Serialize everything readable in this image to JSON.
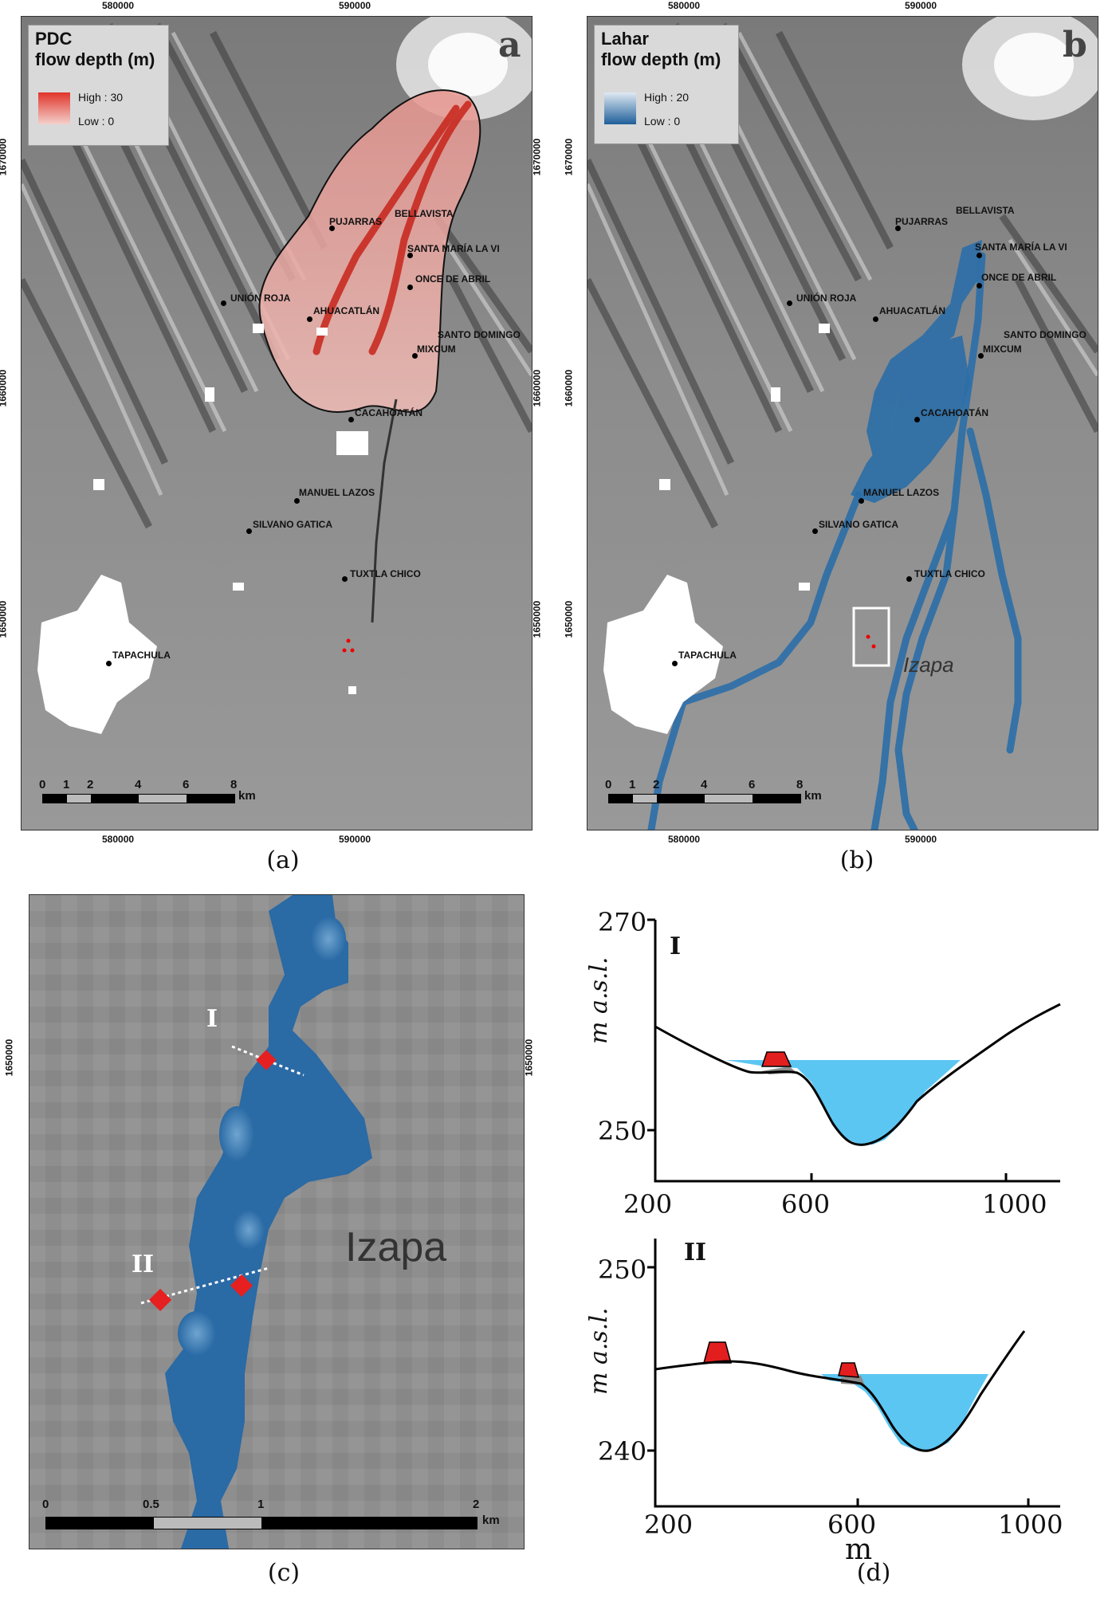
{
  "panel_a": {
    "caption": "(a)",
    "letter": "a",
    "legend_title_1": "PDC",
    "legend_title_2": "flow depth (m)",
    "legend_high": "High : 30",
    "legend_low": "Low : 0",
    "color": "#d9362e"
  },
  "panel_b": {
    "caption": "(b)",
    "letter": "b",
    "legend_title_1": "Lahar",
    "legend_title_2": "flow depth (m)",
    "legend_high": "High : 20",
    "legend_low": "Low : 0",
    "color": "#2b6ea8",
    "inset_label": "Izapa"
  },
  "panel_c": {
    "caption": "(c)",
    "tick_y": "1650000",
    "place": "Izapa",
    "profile_1": "I",
    "profile_2": "II",
    "scale": [
      "0",
      "0.5",
      "1",
      "2"
    ],
    "scale_unit": "km"
  },
  "panel_d": {
    "caption": "(d)",
    "plot_I": {
      "label": "I",
      "ylabel": "m a.s.l.",
      "yticks": [
        "270",
        "250"
      ],
      "xticks": [
        "200",
        "600",
        "1000"
      ]
    },
    "plot_II": {
      "label": "II",
      "ylabel": "m a.s.l.",
      "yticks": [
        "250",
        "240"
      ],
      "xticks": [
        "200",
        "600",
        "1000"
      ],
      "xlabel": "m"
    }
  },
  "map_axes": {
    "x_ticks": [
      "580000",
      "590000"
    ],
    "y_ticks": [
      "1670000",
      "1660000",
      "1650000"
    ],
    "scale": [
      "0",
      "1",
      "2",
      "4",
      "6",
      "8"
    ],
    "scale_unit": "km"
  },
  "towns": {
    "pujarras": "PUJARRAS",
    "bellavista": "BELLAVISTA",
    "santa_maria": "SANTA MARÍA LA VI",
    "once_abril": "ONCE DE ABRIL",
    "union_roja": "UNIÓN ROJA",
    "ahuacatlan": "AHUACATLÁN",
    "santo_domingo": "SANTO DOMINGO",
    "mixcum": "MIXCUM",
    "cacahoatan": "CACAHOATÁN",
    "manuel_lazos": "MANUEL LAZOS",
    "silvano_gatica": "SILVANO GATICA",
    "tuxtla_chico": "TUXTLA CHICO",
    "tapachula": "TAPACHULA"
  }
}
